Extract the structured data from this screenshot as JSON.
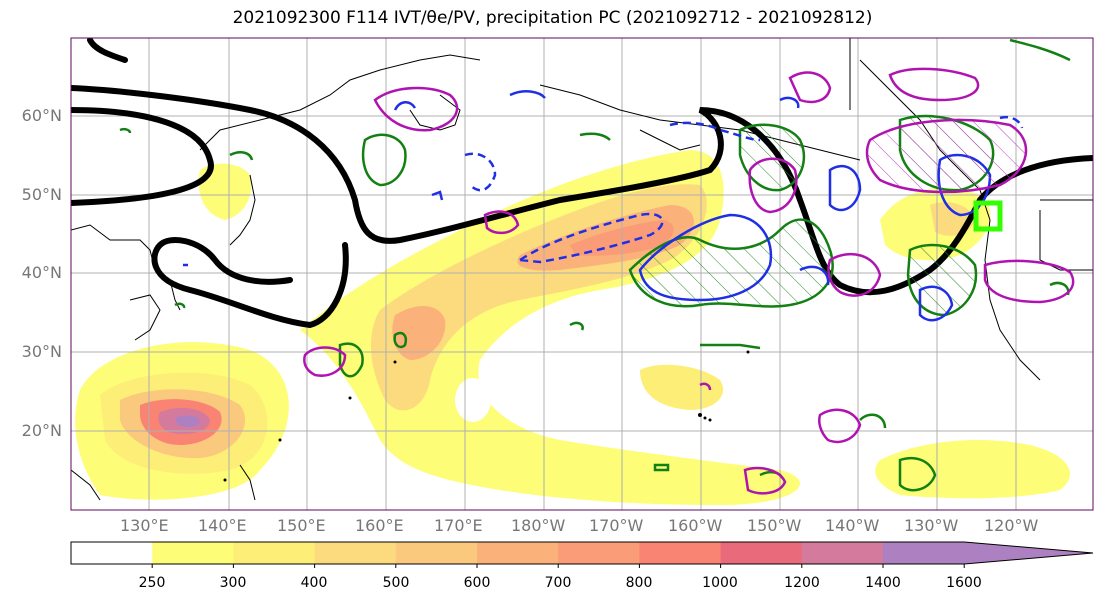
{
  "figure": {
    "title": "2021092300 F114 IVT/θe/PV, precipitation PC (2021092712 - 2021092812)"
  },
  "map": {
    "projection": "PlateCarree",
    "lon_ticks": [
      "130°E",
      "140°E",
      "150°E",
      "160°E",
      "170°E",
      "180°W",
      "170°W",
      "160°W",
      "150°W",
      "140°W",
      "130°W",
      "120°W"
    ],
    "lat_ticks": [
      "60°N",
      "50°N",
      "40°N",
      "30°N",
      "20°N"
    ],
    "fields": [
      "IVT filled contours (yellow to purple)",
      "PV contour (thick black)",
      "precipitation PC contours (green, blue, blue dashed, magenta)"
    ],
    "highlight_box": {
      "color": "#33ff00"
    }
  },
  "colorbar": {
    "levels": [
      "250",
      "300",
      "400",
      "500",
      "600",
      "700",
      "800",
      "1000",
      "1200",
      "1400",
      "1600"
    ],
    "colors": [
      "#ffffff",
      "#fdfd78",
      "#fdee78",
      "#fbdb7e",
      "#fbc97d",
      "#fbb27a",
      "#fa9c78",
      "#f98474",
      "#e96b7b",
      "#d47b9d",
      "#ad81c1"
    ],
    "extend": "max"
  }
}
